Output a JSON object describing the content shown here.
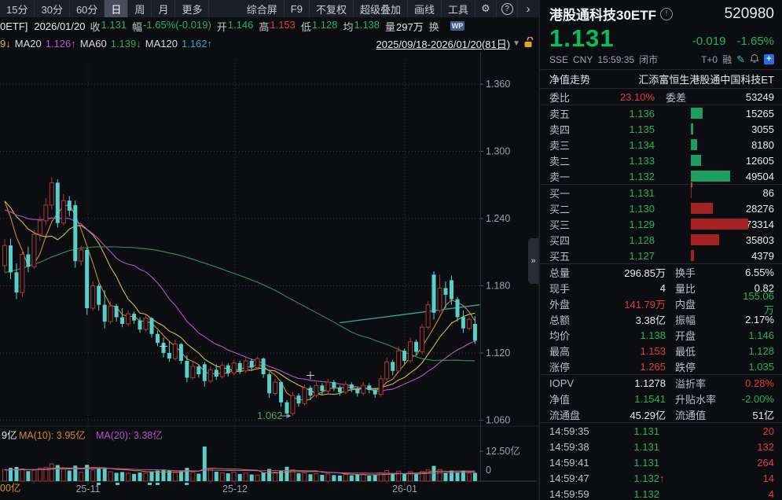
{
  "toolbar": {
    "periods": [
      "15分",
      "30分",
      "60分",
      "日",
      "周",
      "月",
      "更多"
    ],
    "active_period": "日",
    "right_items": [
      "综合屏",
      "F9",
      "不复权",
      "超级叠加",
      "画线",
      "工具"
    ],
    "gear_icon": "⚙",
    "help_icon": "?",
    "chevron_icon": "›"
  },
  "info_row": {
    "symbol_tail": "0ETF]",
    "date": "2026/01/20",
    "pairs": [
      {
        "l": "收",
        "v": "1.131",
        "c": "g"
      },
      {
        "l": "幅",
        "v": "-1.65%(-0.019)",
        "c": "g"
      },
      {
        "l": "开",
        "v": "1.146",
        "c": "g"
      },
      {
        "l": "高",
        "v": "1.153",
        "c": "r"
      },
      {
        "l": "低",
        "v": "1.128",
        "c": "g"
      },
      {
        "l": "均",
        "v": "1.138",
        "c": "g"
      },
      {
        "l": "量",
        "v": "297万",
        "c": "w"
      },
      {
        "l": "换",
        "v": "",
        "c": "w"
      }
    ],
    "wp_badge": "WP"
  },
  "ma_row": {
    "items": [
      {
        "t": "9↓",
        "color": "#cdbf4e"
      },
      {
        "t": "MA20",
        "color": "#d8dce2"
      },
      {
        "t": "1.126↑",
        "color": "#c055c8"
      },
      {
        "t": "MA60",
        "color": "#d8dce2"
      },
      {
        "t": "1.139↓",
        "color": "#2fa45f"
      },
      {
        "t": "MA120",
        "color": "#d8dce2"
      },
      {
        "t": "1.162↑",
        "color": "#35a6c0"
      }
    ],
    "range": "2025/09/18-2026/01/20(81日)",
    "range_arrow": "▼"
  },
  "chart_data": {
    "type": "candlestick+volume",
    "title": "港股通科技30ETF 日K",
    "visible_range": "2025/09/18-2026/01/20(81日)",
    "y_ticks": [
      "1.360",
      "1.300",
      "1.240",
      "1.180",
      "1.120",
      "1.060"
    ],
    "y_values": [
      1.36,
      1.3,
      1.24,
      1.18,
      1.12,
      1.06
    ],
    "x_labels": [
      {
        "label": "25-11",
        "x": 112
      },
      {
        "label": "25-12",
        "x": 299
      },
      {
        "label": "26-01",
        "x": 515
      }
    ],
    "low_annotation": {
      "text": "1.062",
      "arrow": "→"
    },
    "vol_axis_top": "12.50亿",
    "vol_axis_bottom": "0",
    "vol_axis_left_partial": "00亿",
    "vol_ma_prefix": "9亿",
    "vol_ma10_label": "MA(10): 3.95亿",
    "vol_ma20_label": "MA(20): 3.38亿",
    "candles": [
      [
        1.198,
        1.222,
        1.192,
        1.216
      ],
      [
        1.216,
        1.222,
        1.186,
        1.192
      ],
      [
        1.192,
        1.2,
        1.168,
        1.174
      ],
      [
        1.174,
        1.212,
        1.17,
        1.208
      ],
      [
        1.208,
        1.215,
        1.192,
        1.197
      ],
      [
        1.197,
        1.23,
        1.195,
        1.226
      ],
      [
        1.226,
        1.242,
        1.22,
        1.238
      ],
      [
        1.238,
        1.258,
        1.234,
        1.252
      ],
      [
        1.252,
        1.277,
        1.248,
        1.272
      ],
      [
        1.272,
        1.275,
        1.232,
        1.236
      ],
      [
        1.236,
        1.262,
        1.234,
        1.256
      ],
      [
        1.256,
        1.26,
        1.242,
        1.247
      ],
      [
        1.252,
        1.256,
        1.196,
        1.202
      ],
      [
        1.202,
        1.216,
        1.198,
        1.212
      ],
      [
        1.212,
        1.214,
        1.154,
        1.16
      ],
      [
        1.16,
        1.184,
        1.158,
        1.18
      ],
      [
        1.18,
        1.182,
        1.158,
        1.163
      ],
      [
        1.163,
        1.176,
        1.142,
        1.148
      ],
      [
        1.148,
        1.166,
        1.146,
        1.162
      ],
      [
        1.162,
        1.164,
        1.148,
        1.152
      ],
      [
        1.152,
        1.16,
        1.143,
        1.146
      ],
      [
        1.146,
        1.158,
        1.144,
        1.155
      ],
      [
        1.155,
        1.157,
        1.146,
        1.149
      ],
      [
        1.149,
        1.152,
        1.138,
        1.141
      ],
      [
        1.141,
        1.154,
        1.139,
        1.151
      ],
      [
        1.151,
        1.152,
        1.134,
        1.137
      ],
      [
        1.137,
        1.14,
        1.126,
        1.129
      ],
      [
        1.129,
        1.134,
        1.116,
        1.12
      ],
      [
        1.12,
        1.13,
        1.112,
        1.115
      ],
      [
        1.115,
        1.132,
        1.113,
        1.128
      ],
      [
        1.128,
        1.129,
        1.11,
        1.113
      ],
      [
        1.113,
        1.118,
        1.094,
        1.098
      ],
      [
        1.098,
        1.112,
        1.096,
        1.108
      ],
      [
        1.108,
        1.11,
        1.098,
        1.101
      ],
      [
        1.11,
        1.112,
        1.09,
        1.095
      ],
      [
        1.095,
        1.108,
        1.093,
        1.105
      ],
      [
        1.105,
        1.11,
        1.096,
        1.099
      ],
      [
        1.099,
        1.112,
        1.097,
        1.109
      ],
      [
        1.109,
        1.111,
        1.099,
        1.102
      ],
      [
        1.102,
        1.114,
        1.1,
        1.111
      ],
      [
        1.111,
        1.113,
        1.101,
        1.104
      ],
      [
        1.104,
        1.116,
        1.102,
        1.113
      ],
      [
        1.113,
        1.115,
        1.104,
        1.107
      ],
      [
        1.107,
        1.117,
        1.105,
        1.115
      ],
      [
        1.115,
        1.116,
        1.098,
        1.101
      ],
      [
        1.101,
        1.103,
        1.08,
        1.084
      ],
      [
        1.084,
        1.097,
        1.082,
        1.094
      ],
      [
        1.094,
        1.095,
        1.072,
        1.076
      ],
      [
        1.076,
        1.078,
        1.062,
        1.066
      ],
      [
        1.066,
        1.085,
        1.064,
        1.082
      ],
      [
        1.082,
        1.084,
        1.072,
        1.075
      ],
      [
        1.075,
        1.092,
        1.073,
        1.089
      ],
      [
        1.089,
        1.091,
        1.078,
        1.082
      ],
      [
        1.082,
        1.094,
        1.08,
        1.091
      ],
      [
        1.091,
        1.093,
        1.083,
        1.086
      ],
      [
        1.086,
        1.097,
        1.084,
        1.094
      ],
      [
        1.094,
        1.096,
        1.086,
        1.089
      ],
      [
        1.089,
        1.091,
        1.082,
        1.085
      ],
      [
        1.085,
        1.095,
        1.083,
        1.092
      ],
      [
        1.092,
        1.094,
        1.085,
        1.088
      ],
      [
        1.088,
        1.09,
        1.081,
        1.084
      ],
      [
        1.084,
        1.094,
        1.082,
        1.091
      ],
      [
        1.091,
        1.093,
        1.084,
        1.087
      ],
      [
        1.087,
        1.089,
        1.08,
        1.083
      ],
      [
        1.083,
        1.1,
        1.081,
        1.097
      ],
      [
        1.097,
        1.116,
        1.095,
        1.112
      ],
      [
        1.112,
        1.114,
        1.1,
        1.104
      ],
      [
        1.104,
        1.126,
        1.102,
        1.122
      ],
      [
        1.122,
        1.124,
        1.11,
        1.113
      ],
      [
        1.113,
        1.134,
        1.111,
        1.13
      ],
      [
        1.13,
        1.132,
        1.118,
        1.121
      ],
      [
        1.121,
        1.146,
        1.119,
        1.143
      ],
      [
        1.143,
        1.166,
        1.141,
        1.163
      ],
      [
        1.19,
        1.193,
        1.15,
        1.156
      ],
      [
        1.158,
        1.19,
        1.156,
        1.178
      ],
      [
        1.178,
        1.184,
        1.16,
        1.172
      ],
      [
        1.185,
        1.189,
        1.163,
        1.168
      ],
      [
        1.168,
        1.17,
        1.148,
        1.152
      ],
      [
        1.152,
        1.158,
        1.138,
        1.142
      ],
      [
        1.142,
        1.152,
        1.14,
        1.15
      ],
      [
        1.146,
        1.153,
        1.128,
        1.131
      ]
    ],
    "volumes_yi": [
      4.2,
      4.8,
      5.1,
      4.4,
      3.6,
      4.0,
      4.6,
      5.0,
      6.2,
      5.8,
      4.4,
      3.8,
      5.6,
      3.2,
      5.9,
      4.1,
      4.5,
      4.8,
      3.4,
      3.0,
      3.3,
      2.8,
      2.6,
      3.1,
      2.9,
      3.5,
      3.8,
      4.2,
      3.9,
      3.1,
      3.6,
      4.8,
      3.2,
      2.7,
      12.5,
      4.6,
      3.4,
      3.0,
      2.8,
      3.2,
      2.6,
      2.9,
      2.4,
      2.2,
      3.1,
      4.4,
      3.3,
      3.8,
      5.2,
      4.1,
      2.8,
      3.0,
      2.5,
      2.7,
      2.3,
      2.6,
      2.2,
      2.0,
      2.4,
      2.1,
      2.3,
      2.5,
      2.0,
      2.2,
      3.0,
      3.8,
      2.9,
      3.6,
      2.8,
      3.4,
      2.7,
      3.5,
      4.0,
      5.5,
      4.2,
      3.0,
      3.8,
      3.2,
      3.6,
      2.9,
      3.0
    ],
    "trendline": {
      "i1": 57,
      "p1": 1.147,
      "i2": 80,
      "p2": 1.163
    },
    "cross_markers": [
      {
        "i": 27,
        "p": 1.126
      },
      {
        "i": 52,
        "p": 1.1
      }
    ],
    "colors": {
      "up": "#ad3a35",
      "down": "#57d0cb",
      "ma5": "#cf8a2d",
      "ma10": "#cdbf4e",
      "ma20": "#b455c8",
      "ma60": "#2f8f57",
      "ma120": "#35a6a0",
      "grid": "#2e333d",
      "axis_text": "#9aa1ac",
      "annotation_green": "#3fae63"
    }
  },
  "panel": {
    "name": "港股通科技30ETF",
    "info_icon": "!",
    "code": "520980",
    "price": "1.131",
    "change": "-0.019",
    "change_pct": "-1.65%",
    "exchange": "SSE",
    "currency": "CNY",
    "time": "15:59:35",
    "status": "闭市",
    "t0": "T+0",
    "rong": "融",
    "pencil_icon": "✎",
    "plus_icon": "+",
    "nav_label": "净值走势",
    "fund_name": "汇添富恒生港股通中国科技ET",
    "weibi_label": "委比",
    "weibi_value": "23.10%",
    "weicha_label": "委差",
    "weicha_value": "53249",
    "asks": [
      {
        "label": "卖五",
        "price": "1.136",
        "vol": "15265",
        "v": 15265
      },
      {
        "label": "卖四",
        "price": "1.135",
        "vol": "3055",
        "v": 3055
      },
      {
        "label": "卖三",
        "price": "1.134",
        "vol": "8180",
        "v": 8180
      },
      {
        "label": "卖二",
        "price": "1.133",
        "vol": "12605",
        "v": 12605
      },
      {
        "label": "卖一",
        "price": "1.132",
        "vol": "49504",
        "v": 49504
      }
    ],
    "bids": [
      {
        "label": "买一",
        "price": "1.131",
        "vol": "86",
        "v": 86
      },
      {
        "label": "买二",
        "price": "1.130",
        "vol": "28276",
        "v": 28276
      },
      {
        "label": "买三",
        "price": "1.129",
        "vol": "73314",
        "v": 73314
      },
      {
        "label": "买四",
        "price": "1.128",
        "vol": "35803",
        "v": 35803
      },
      {
        "label": "买五",
        "price": "1.127",
        "vol": "4379",
        "v": 4379
      }
    ],
    "stats": [
      {
        "l1": "总量",
        "v1": "296.85万",
        "c1": "w",
        "l2": "换手",
        "v2": "6.55%",
        "c2": "w"
      },
      {
        "l1": "现手",
        "v1": "4",
        "c1": "w",
        "l2": "量比",
        "v2": "0.82",
        "c2": "w"
      },
      {
        "l1": "外盘",
        "v1": "141.79万",
        "c1": "r",
        "l2": "内盘",
        "v2": "155.06万",
        "c2": "g"
      },
      {
        "l1": "总额",
        "v1": "3.38亿",
        "c1": "w",
        "l2": "振幅",
        "v2": "2.17%",
        "c2": "w"
      },
      {
        "l1": "均价",
        "v1": "1.138",
        "c1": "g",
        "l2": "开盘",
        "v2": "1.146",
        "c2": "g"
      },
      {
        "l1": "最高",
        "v1": "1.153",
        "c1": "r",
        "l2": "最低",
        "v2": "1.128",
        "c2": "g"
      },
      {
        "l1": "涨停",
        "v1": "1.265",
        "c1": "r",
        "l2": "跌停",
        "v2": "1.035",
        "c2": "g"
      }
    ],
    "stats2": [
      {
        "l1": "IOPV",
        "v1": "1.1278",
        "c1": "w",
        "l2": "溢折率",
        "v2": "0.28%",
        "c2": "r"
      },
      {
        "l1": "净值",
        "v1": "1.1541",
        "c1": "g",
        "l2": "升贴水率",
        "v2": "-2.00%",
        "c2": "g"
      },
      {
        "l1": "流通盘",
        "v1": "45.29亿",
        "c1": "w",
        "l2": "流通值",
        "v2": "51亿",
        "c2": "w"
      }
    ],
    "tick_list": [
      {
        "t": "14:59:35",
        "p": "1.131",
        "arrow": "",
        "v": "20"
      },
      {
        "t": "14:59:38",
        "p": "1.131",
        "arrow": "",
        "v": "132"
      },
      {
        "t": "14:59:41",
        "p": "1.131",
        "arrow": "",
        "v": "264"
      },
      {
        "t": "14:59:47",
        "p": "1.132",
        "arrow": "↑",
        "v": "14"
      },
      {
        "t": "14:59:59",
        "p": "1.132",
        "arrow": "",
        "v": "4"
      }
    ],
    "handle_icon": "»"
  }
}
